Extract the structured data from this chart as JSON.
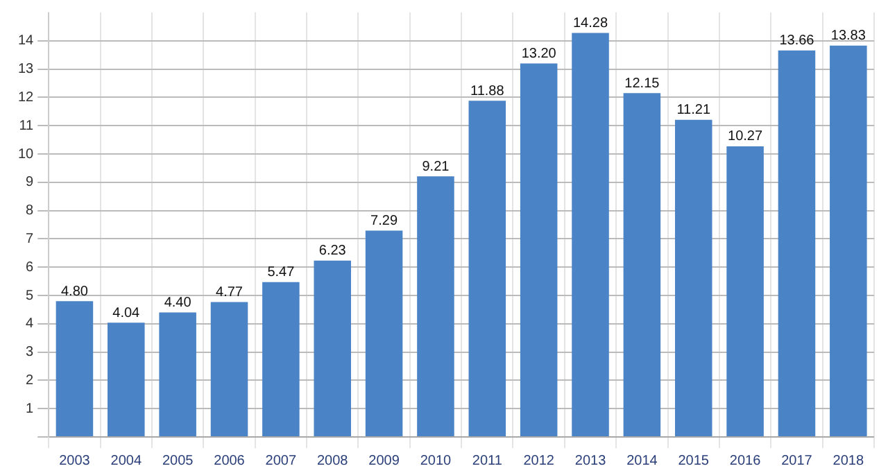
{
  "chart_data": {
    "type": "bar",
    "categories": [
      "2003",
      "2004",
      "2005",
      "2006",
      "2007",
      "2008",
      "2009",
      "2010",
      "2011",
      "2012",
      "2013",
      "2014",
      "2015",
      "2016",
      "2017",
      "2018"
    ],
    "values": [
      4.8,
      4.04,
      4.4,
      4.77,
      5.47,
      6.23,
      7.29,
      9.21,
      11.88,
      13.2,
      14.28,
      12.15,
      11.21,
      10.27,
      13.66,
      13.83
    ],
    "value_labels": [
      "4.80",
      "4.04",
      "4.40",
      "4.77",
      "5.47",
      "6.23",
      "7.29",
      "9.21",
      "11.88",
      "13.20",
      "14.28",
      "12.15",
      "11.21",
      "10.27",
      "13.66",
      "13.83"
    ],
    "color": "#4a84c6",
    "ylim": [
      0,
      15
    ],
    "yticks": [
      {
        "value": 0,
        "label": null
      },
      1,
      2,
      3,
      4,
      5,
      6,
      7,
      8,
      9,
      10,
      11,
      12,
      13,
      14
    ],
    "grid": true,
    "legend": false
  }
}
